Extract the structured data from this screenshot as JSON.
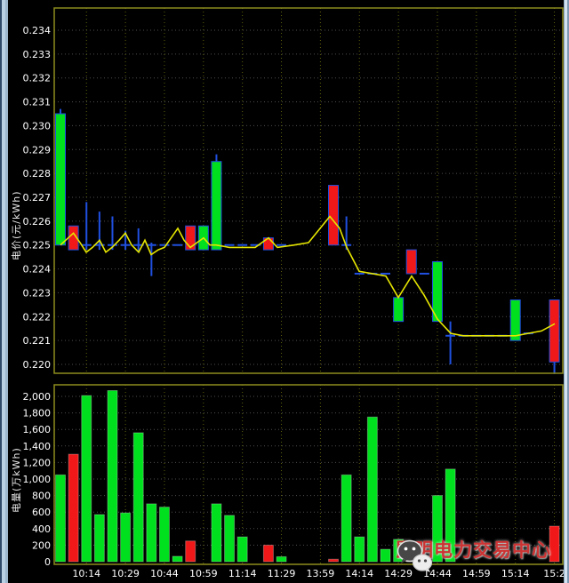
{
  "colors": {
    "up_green": "#00e01e",
    "down_red": "#f01818",
    "wick_blue": "#2050e0",
    "ma_yellow": "#e6e600",
    "frame_olive": "#8c8c1e",
    "grid_h": "#4e4e4e",
    "grid_v": "#60600e",
    "tick_text": "#ffffff",
    "watermark_red": "#cd3333"
  },
  "price_pane": {
    "axis_title": "电价(元/kWh)",
    "tick_labels": [
      "0.234",
      "0.233",
      "0.232",
      "0.231",
      "0.230",
      "0.229",
      "0.228",
      "0.227",
      "0.226",
      "0.225",
      "0.224",
      "0.223",
      "0.222",
      "0.221",
      "0.220"
    ]
  },
  "volume_pane": {
    "axis_title": "电量(万kWh)",
    "tick_labels": [
      "2,000",
      "1,800",
      "1,600",
      "1,400",
      "1,200",
      "1,000",
      "800",
      "600",
      "400",
      "200",
      "0"
    ]
  },
  "time_axis": {
    "tick_labels": [
      "10:14",
      "10:29",
      "10:44",
      "10:59",
      "11:14",
      "11:29",
      "13:59",
      "14:14",
      "14:29",
      "14:44",
      "14:59",
      "15:14",
      "15:2"
    ]
  },
  "watermark": {
    "text": "昆明电力交易中心",
    "icon": "wechat-icon"
  },
  "chart_data": [
    {
      "type": "candlestick",
      "ylabel": "电价(元/kWh)",
      "ylim": [
        0.2196,
        0.2349
      ],
      "price_step": 0.001,
      "candles": [
        {
          "slot": 0,
          "color": "green",
          "body_low": 0.225,
          "body_high": 0.2305,
          "wick_high": 0.2307
        },
        {
          "slot": 1,
          "color": "red",
          "body_low": 0.2248,
          "body_high": 0.2258
        },
        {
          "slot": 10,
          "color": "red",
          "body_low": 0.2248,
          "body_high": 0.2258
        },
        {
          "slot": 11,
          "color": "green",
          "body_low": 0.2248,
          "body_high": 0.2258
        },
        {
          "slot": 12,
          "color": "green",
          "body_low": 0.2248,
          "body_high": 0.2285,
          "wick_high": 0.2288
        },
        {
          "slot": 16,
          "color": "red",
          "body_low": 0.2248,
          "body_high": 0.2253
        },
        {
          "slot": 21,
          "color": "red",
          "body_low": 0.225,
          "body_high": 0.2275
        },
        {
          "slot": 26,
          "color": "green",
          "body_low": 0.2218,
          "body_high": 0.2228
        },
        {
          "slot": 27,
          "color": "red",
          "body_low": 0.2238,
          "body_high": 0.2248
        },
        {
          "slot": 29,
          "color": "green",
          "body_low": 0.2218,
          "body_high": 0.2243
        },
        {
          "slot": 35,
          "color": "green",
          "body_low": 0.221,
          "body_high": 0.2227
        },
        {
          "slot": 38,
          "color": "red",
          "body_low": 0.2201,
          "body_high": 0.2227,
          "wick_low": 0.2196
        }
      ],
      "dojis": [
        {
          "slot": 2,
          "close": 0.225,
          "high": 0.2268,
          "low": 0.2248
        },
        {
          "slot": 3,
          "close": 0.225,
          "high": 0.2264,
          "low": 0.2248
        },
        {
          "slot": 4,
          "close": 0.225,
          "high": 0.2262,
          "low": 0.2248
        },
        {
          "slot": 5,
          "close": 0.225,
          "high": 0.2256,
          "low": 0.2248
        },
        {
          "slot": 6,
          "close": 0.225,
          "high": 0.2257,
          "low": 0.2247
        },
        {
          "slot": 7,
          "close": 0.225,
          "high": 0.2251,
          "low": 0.2237
        },
        {
          "slot": 8,
          "close": 0.225
        },
        {
          "slot": 9,
          "close": 0.225
        },
        {
          "slot": 13,
          "close": 0.225
        },
        {
          "slot": 14,
          "close": 0.225
        },
        {
          "slot": 15,
          "close": 0.225
        },
        {
          "slot": 17,
          "close": 0.225
        },
        {
          "slot": 22,
          "close": 0.225,
          "high": 0.2262,
          "low": 0.2248
        },
        {
          "slot": 23,
          "close": 0.2238
        },
        {
          "slot": 24,
          "close": 0.2238
        },
        {
          "slot": 25,
          "close": 0.2238
        },
        {
          "slot": 28,
          "close": 0.2238
        },
        {
          "slot": 30,
          "close": 0.2212,
          "high": 0.2218,
          "low": 0.22
        },
        {
          "slot": 31,
          "close": 0.2212
        },
        {
          "slot": 32,
          "close": 0.2212
        },
        {
          "slot": 33,
          "close": 0.2212
        },
        {
          "slot": 34,
          "close": 0.2212
        },
        {
          "slot": 36,
          "close": 0.2213
        }
      ],
      "ma_line": [
        [
          68,
          0.225
        ],
        [
          82.6,
          0.2255
        ],
        [
          90,
          0.2251
        ],
        [
          97,
          0.2247
        ],
        [
          104,
          0.2249
        ],
        [
          112,
          0.2252
        ],
        [
          119,
          0.2247
        ],
        [
          126,
          0.2249
        ],
        [
          134,
          0.2252
        ],
        [
          141,
          0.2255
        ],
        [
          148,
          0.225
        ],
        [
          156,
          0.2247
        ],
        [
          163,
          0.2252
        ],
        [
          170,
          0.2246
        ],
        [
          178,
          0.2248
        ],
        [
          185,
          0.2249
        ],
        [
          200,
          0.2257
        ],
        [
          207,
          0.2252
        ],
        [
          214,
          0.2249
        ],
        [
          229,
          0.2253
        ],
        [
          236,
          0.225
        ],
        [
          243,
          0.225
        ],
        [
          258,
          0.2249
        ],
        [
          273,
          0.2249
        ],
        [
          287,
          0.2249
        ],
        [
          302,
          0.2253
        ],
        [
          312,
          0.2249
        ],
        [
          331,
          0.225
        ],
        [
          347,
          0.2251
        ],
        [
          371,
          0.2262
        ],
        [
          382,
          0.2257
        ],
        [
          390,
          0.2249
        ],
        [
          404,
          0.2239
        ],
        [
          419,
          0.2238
        ],
        [
          434,
          0.2237
        ],
        [
          448,
          0.2228
        ],
        [
          463,
          0.2237
        ],
        [
          477,
          0.2229
        ],
        [
          492,
          0.2219
        ],
        [
          507,
          0.2213
        ],
        [
          521,
          0.2212
        ],
        [
          536,
          0.2212
        ],
        [
          551,
          0.2212
        ],
        [
          565,
          0.2212
        ],
        [
          580,
          0.2212
        ],
        [
          594,
          0.2213
        ],
        [
          609,
          0.2214
        ],
        [
          624,
          0.2217
        ]
      ]
    },
    {
      "type": "bar",
      "ylabel": "电量(万kWh)",
      "ylim": [
        0,
        2140
      ],
      "bars": [
        {
          "slot": 0,
          "value": 1050,
          "color": "green"
        },
        {
          "slot": 1,
          "value": 1300,
          "color": "red"
        },
        {
          "slot": 2,
          "value": 2010,
          "color": "green"
        },
        {
          "slot": 3,
          "value": 570,
          "color": "green"
        },
        {
          "slot": 4,
          "value": 2070,
          "color": "green"
        },
        {
          "slot": 5,
          "value": 590,
          "color": "green"
        },
        {
          "slot": 6,
          "value": 1560,
          "color": "green"
        },
        {
          "slot": 7,
          "value": 700,
          "color": "green"
        },
        {
          "slot": 8,
          "value": 660,
          "color": "green"
        },
        {
          "slot": 9,
          "value": 65,
          "color": "green"
        },
        {
          "slot": 10,
          "value": 250,
          "color": "red"
        },
        {
          "slot": 12,
          "value": 700,
          "color": "green"
        },
        {
          "slot": 13,
          "value": 560,
          "color": "green"
        },
        {
          "slot": 14,
          "value": 300,
          "color": "green"
        },
        {
          "slot": 16,
          "value": 200,
          "color": "red"
        },
        {
          "slot": 17,
          "value": 60,
          "color": "green"
        },
        {
          "slot": 21,
          "value": 30,
          "color": "red"
        },
        {
          "slot": 22,
          "value": 1050,
          "color": "green"
        },
        {
          "slot": 23,
          "value": 300,
          "color": "green"
        },
        {
          "slot": 24,
          "value": 1750,
          "color": "green"
        },
        {
          "slot": 25,
          "value": 150,
          "color": "green"
        },
        {
          "slot": 26,
          "value": 270,
          "color": "green"
        },
        {
          "slot": 27,
          "value": 95,
          "color": "red"
        },
        {
          "slot": 29,
          "value": 800,
          "color": "green"
        },
        {
          "slot": 30,
          "value": 1120,
          "color": "green"
        },
        {
          "slot": 38,
          "value": 430,
          "color": "red"
        }
      ]
    }
  ]
}
